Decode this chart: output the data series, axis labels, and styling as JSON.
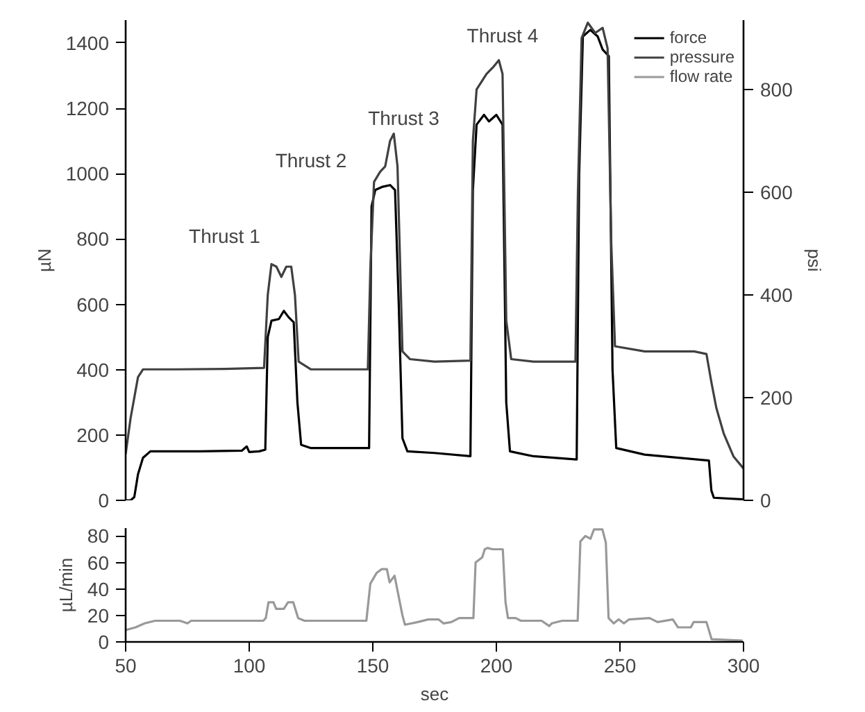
{
  "chart_data": [
    {
      "type": "line",
      "ylabel": "µN",
      "y2label": "psi",
      "xlim": [
        50,
        300
      ],
      "ylim": [
        0,
        1470
      ],
      "yticks": [
        0,
        200,
        400,
        600,
        800,
        1000,
        1200,
        1400
      ],
      "y2lim": [
        0,
        935
      ],
      "y2ticks": [
        0,
        200,
        400,
        600,
        800
      ],
      "tick_labels": "y",
      "legend": "top right",
      "grid": false,
      "annotations": [
        "Thrust 1",
        "Thrust 2",
        "Thrust 3",
        "Thrust 4"
      ],
      "series": [
        {
          "name": "force",
          "color": "#000000",
          "x": [
            50,
            52,
            53.5,
            55,
            57,
            60,
            80,
            97,
            99,
            100,
            104,
            106.5,
            107.5,
            109,
            112,
            114,
            116,
            118,
            119.5,
            121,
            125,
            140,
            148.5,
            149.5,
            151,
            154,
            157,
            159,
            160.5,
            162,
            164,
            175,
            189.5,
            190.5,
            192,
            195,
            197,
            200,
            202.5,
            204,
            205.5,
            215,
            232.5,
            233.5,
            235,
            238,
            241,
            243,
            245.5,
            247,
            248.5,
            260,
            286,
            287,
            288,
            300
          ],
          "values": [
            0,
            0,
            10,
            80,
            130,
            150,
            150,
            152,
            165,
            148,
            150,
            155,
            500,
            550,
            555,
            580,
            560,
            545,
            300,
            170,
            160,
            160,
            160,
            900,
            950,
            960,
            965,
            950,
            600,
            190,
            150,
            145,
            135,
            950,
            1150,
            1180,
            1160,
            1180,
            1150,
            300,
            150,
            135,
            125,
            1000,
            1420,
            1440,
            1420,
            1380,
            1360,
            400,
            160,
            140,
            122,
            30,
            8,
            3
          ]
        },
        {
          "name": "pressure",
          "color": "#404040",
          "axis": "y2",
          "x": [
            50,
            52,
            55,
            57,
            70,
            90,
            106,
            107.5,
            109,
            111,
            113,
            115,
            117,
            118.5,
            120,
            125,
            135,
            148,
            149,
            150.5,
            153,
            155,
            157,
            158.5,
            160,
            162,
            165,
            175,
            189.5,
            190.5,
            192,
            196,
            199,
            201,
            202.5,
            204,
            206,
            215,
            232,
            233,
            234.5,
            237,
            240,
            243,
            245,
            246.5,
            248,
            260,
            280,
            285,
            287,
            289,
            292,
            296,
            300
          ],
          "values": [
            90,
            160,
            240,
            255,
            255,
            256,
            258,
            400,
            460,
            455,
            435,
            455,
            455,
            400,
            270,
            255,
            255,
            255,
            450,
            620,
            640,
            650,
            700,
            714,
            650,
            290,
            275,
            270,
            272,
            700,
            800,
            830,
            845,
            857,
            830,
            350,
            275,
            270,
            270,
            600,
            900,
            930,
            910,
            920,
            880,
            500,
            300,
            290,
            290,
            285,
            230,
            180,
            130,
            85,
            62
          ]
        }
      ]
    },
    {
      "type": "line",
      "ylabel": "µL/min",
      "xlabel": "sec",
      "xlim": [
        50,
        300
      ],
      "xticks": [
        50,
        100,
        150,
        200,
        250,
        300
      ],
      "ylim": [
        0,
        86
      ],
      "yticks": [
        0,
        20,
        40,
        60,
        80
      ],
      "grid": false,
      "series": [
        {
          "name": "flow rate",
          "color": "#999999",
          "x": [
            50,
            54,
            57.7,
            61.9,
            72,
            75,
            76.5,
            105.7,
            106.7,
            107.8,
            109.8,
            110.9,
            114,
            115.7,
            117.8,
            119.8,
            122.4,
            147.4,
            149,
            151.5,
            153.6,
            155.7,
            156.8,
            158.8,
            162,
            163,
            168.2,
            172.4,
            176.6,
            178.6,
            181.8,
            184.9,
            190.7,
            191.6,
            194.3,
            195.3,
            196.4,
            198.5,
            202.6,
            203.7,
            204.7,
            207.8,
            209.9,
            218.3,
            221.4,
            222.4,
            226.6,
            232.9,
            234,
            236,
            238.1,
            239.5,
            242.9,
            244.3,
            245.4,
            247.5,
            249.5,
            251.6,
            253.7,
            262,
            265.2,
            271.4,
            273.5,
            278.7,
            279.8,
            285,
            287.1,
            299.6
          ],
          "values": [
            9,
            11,
            14,
            16,
            16,
            14,
            16,
            16,
            18,
            30,
            30,
            25,
            25,
            30,
            30,
            18,
            16,
            16,
            44,
            52,
            55,
            55,
            45,
            50,
            20,
            13,
            15,
            17,
            17,
            14,
            15,
            18,
            18,
            60,
            64,
            70,
            71,
            70,
            70,
            30,
            18,
            18,
            16,
            16,
            12,
            14,
            16,
            16,
            76,
            80,
            78,
            85,
            85,
            75,
            18,
            14,
            17,
            14,
            17,
            18,
            15,
            17,
            11,
            11,
            15,
            15,
            2,
            1
          ]
        }
      ]
    }
  ]
}
